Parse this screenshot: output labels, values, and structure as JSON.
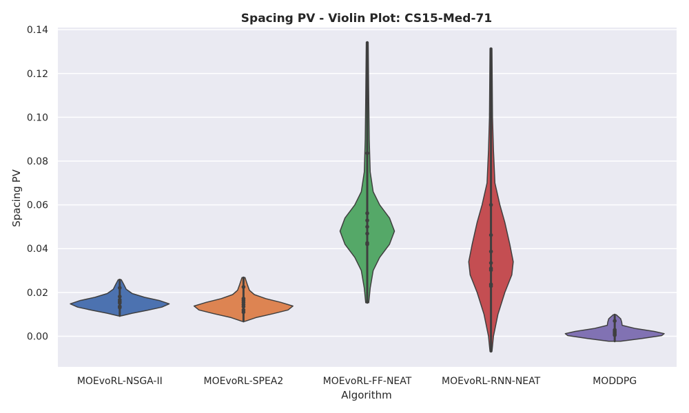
{
  "chart_data": {
    "type": "violin",
    "title": "Spacing PV - Violin Plot: CS15-Med-71",
    "xlabel": "Algorithm",
    "ylabel": "Spacing PV",
    "ylim": [
      -0.014,
      0.141
    ],
    "yticks": [
      0.0,
      0.02,
      0.04,
      0.06,
      0.08,
      0.1,
      0.12,
      0.14
    ],
    "ytick_labels": [
      "0.00",
      "0.02",
      "0.04",
      "0.06",
      "0.08",
      "0.10",
      "0.12",
      "0.14"
    ],
    "grid": true,
    "background": "#eaeaf2",
    "categories": [
      "MOEvoRL-NSGA-II",
      "MOEvoRL-SPEA2",
      "MOEvoRL-FF-NEAT",
      "MOEvoRL-RNN-NEAT",
      "MODDPG"
    ],
    "series": [
      {
        "color": "#4c72b0",
        "points": [
          0.0221,
          0.0181,
          0.0166,
          0.0158,
          0.0152,
          0.0136,
          0.0131
        ],
        "min": 0.0093,
        "max": 0.0258,
        "profile": [
          [
            0.0093,
            0.03
          ],
          [
            0.0105,
            0.25
          ],
          [
            0.0118,
            0.55
          ],
          [
            0.0133,
            0.85
          ],
          [
            0.0148,
            1.0
          ],
          [
            0.0163,
            0.8
          ],
          [
            0.0178,
            0.5
          ],
          [
            0.0195,
            0.25
          ],
          [
            0.0215,
            0.13
          ],
          [
            0.0238,
            0.08
          ],
          [
            0.0258,
            0.03
          ]
        ]
      },
      {
        "color": "#dd8452",
        "points": [
          0.0225,
          0.0172,
          0.0164,
          0.0155,
          0.0145,
          0.0135,
          0.012,
          0.011
        ],
        "min": 0.0068,
        "max": 0.0268,
        "profile": [
          [
            0.0068,
            0.03
          ],
          [
            0.0085,
            0.25
          ],
          [
            0.0103,
            0.6
          ],
          [
            0.012,
            0.9
          ],
          [
            0.0138,
            1.0
          ],
          [
            0.0155,
            0.75
          ],
          [
            0.0172,
            0.45
          ],
          [
            0.019,
            0.22
          ],
          [
            0.021,
            0.12
          ],
          [
            0.0235,
            0.08
          ],
          [
            0.0268,
            0.03
          ]
        ]
      },
      {
        "color": "#55a868",
        "points": [
          0.1077,
          0.0836,
          0.0562,
          0.0529,
          0.05,
          0.0469,
          0.0426,
          0.042
        ],
        "min": 0.0153,
        "max": 0.1343,
        "profile": [
          [
            0.0153,
            0.03
          ],
          [
            0.022,
            0.06
          ],
          [
            0.03,
            0.12
          ],
          [
            0.036,
            0.25
          ],
          [
            0.042,
            0.45
          ],
          [
            0.048,
            0.55
          ],
          [
            0.054,
            0.45
          ],
          [
            0.06,
            0.25
          ],
          [
            0.066,
            0.12
          ],
          [
            0.075,
            0.06
          ],
          [
            0.09,
            0.04
          ],
          [
            0.108,
            0.03
          ],
          [
            0.1343,
            0.02
          ]
        ]
      },
      {
        "color": "#c44e52",
        "points": [
          0.1014,
          0.06,
          0.0462,
          0.0387,
          0.0335,
          0.031,
          0.0302,
          0.0237,
          0.0229
        ],
        "min": -0.007,
        "max": 0.1315,
        "profile": [
          [
            -0.007,
            0.02
          ],
          [
            0.0,
            0.05
          ],
          [
            0.01,
            0.14
          ],
          [
            0.02,
            0.28
          ],
          [
            0.028,
            0.42
          ],
          [
            0.034,
            0.45
          ],
          [
            0.042,
            0.38
          ],
          [
            0.052,
            0.28
          ],
          [
            0.06,
            0.18
          ],
          [
            0.07,
            0.08
          ],
          [
            0.085,
            0.05
          ],
          [
            0.1,
            0.03
          ],
          [
            0.1315,
            0.02
          ]
        ]
      },
      {
        "color": "#8172b3",
        "points": [
          0.007,
          0.0029,
          0.0022,
          0.0017,
          0.001,
          0.0005
        ],
        "min": -0.0023,
        "max": 0.0098,
        "profile": [
          [
            -0.0023,
            0.12
          ],
          [
            -0.001,
            0.55
          ],
          [
            0.0003,
            0.95
          ],
          [
            0.0012,
            1.0
          ],
          [
            0.0022,
            0.8
          ],
          [
            0.0035,
            0.42
          ],
          [
            0.005,
            0.15
          ],
          [
            0.0065,
            0.14
          ],
          [
            0.008,
            0.12
          ],
          [
            0.0098,
            0.03
          ]
        ]
      }
    ]
  }
}
